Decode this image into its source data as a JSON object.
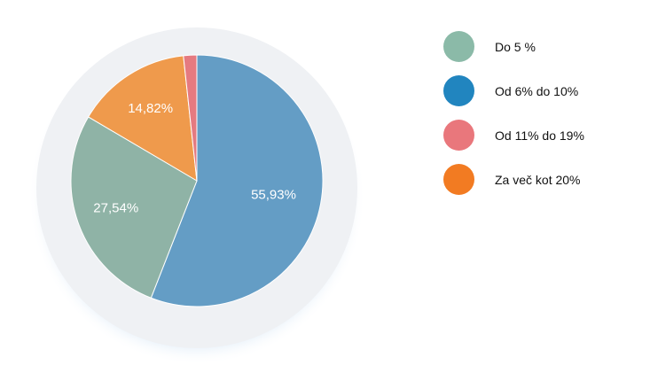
{
  "chart_data": {
    "type": "pie",
    "categories": [
      "Do 5 %",
      "Od 6% do 10%",
      "Od 11% do 19%",
      "Za več kot 20%"
    ],
    "values": [
      27.54,
      55.93,
      1.71,
      14.82
    ],
    "slice_labels": [
      "27,54%",
      "55,93%",
      "",
      "14,82%"
    ],
    "slice_colors": [
      "#8fb3a6",
      "#649dc5",
      "#e57a80",
      "#ef9a4c"
    ],
    "legend_colors": [
      "#8bbaa8",
      "#2185bf",
      "#e9777c",
      "#f27b22"
    ],
    "legend": "right",
    "start_angle_deg": 0,
    "direction": "clockwise"
  }
}
